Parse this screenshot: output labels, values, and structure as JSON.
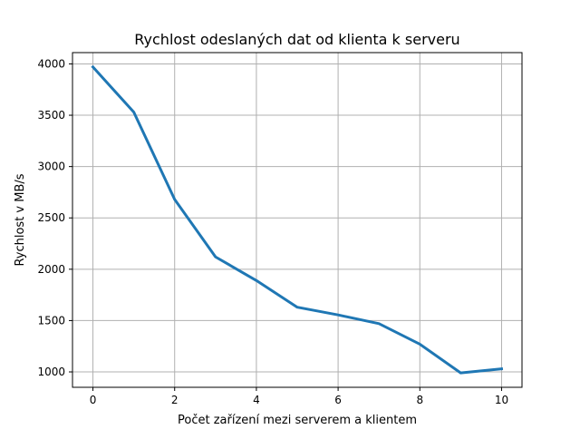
{
  "chart_data": {
    "type": "line",
    "title": "Rychlost odeslaných dat od klienta k serveru",
    "xlabel": "Počet zařízení mezi serverem a klientem",
    "ylabel": "Rychlost v MB/s",
    "xlim": [
      -0.5,
      10.5
    ],
    "ylim": [
      850,
      4110
    ],
    "xticks": [
      0,
      2,
      4,
      6,
      8,
      10
    ],
    "yticks": [
      1000,
      1500,
      2000,
      2500,
      3000,
      3500,
      4000
    ],
    "grid": true,
    "series": [
      {
        "color": "#1f77b4",
        "x": [
          0,
          1,
          2,
          3,
          4,
          5,
          6,
          7,
          8,
          9,
          10
        ],
        "y": [
          3970,
          3530,
          2680,
          2120,
          1890,
          1630,
          1555,
          1470,
          1270,
          990,
          1030
        ]
      }
    ]
  }
}
